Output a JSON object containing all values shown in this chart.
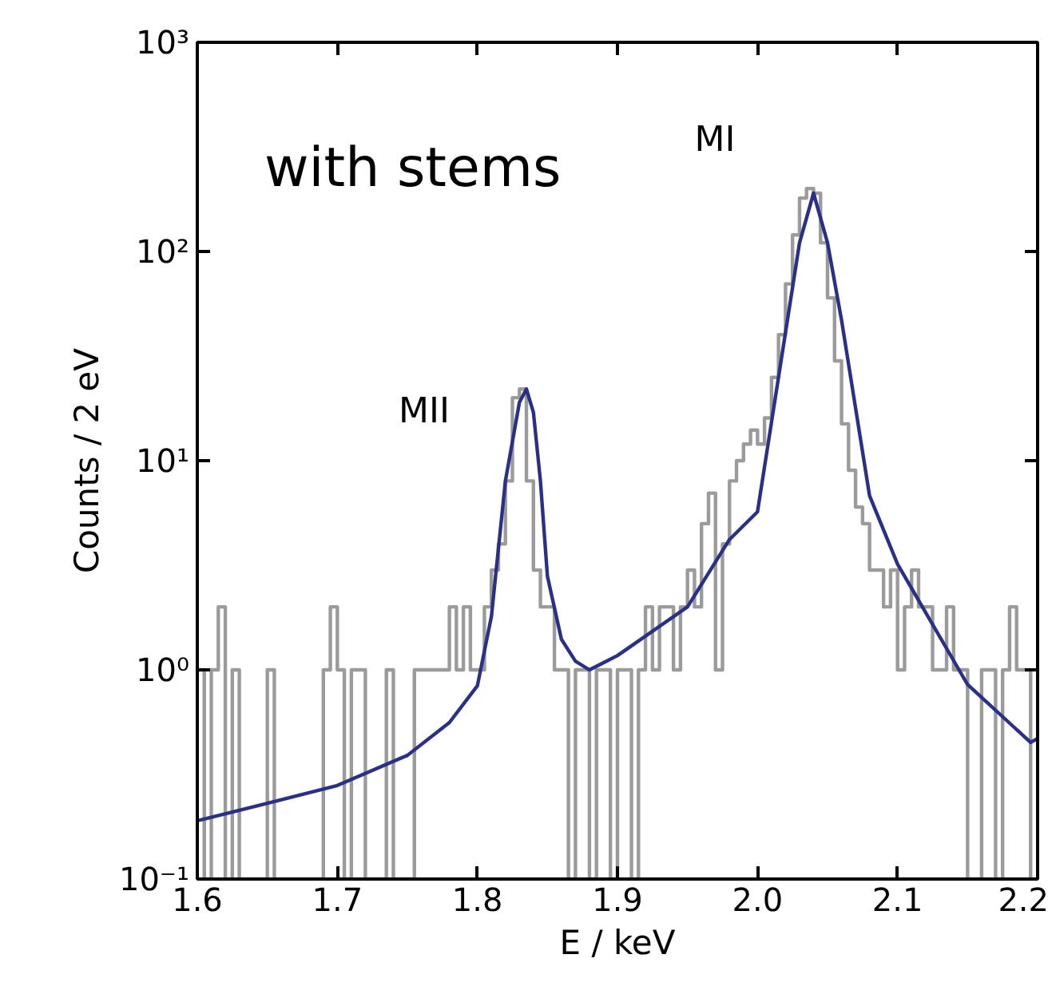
{
  "chart_data": {
    "type": "histogram",
    "xlabel": "E / keV",
    "ylabel": "Counts / 2 eV",
    "log": "y",
    "grid": false,
    "xlim": [
      1.6,
      2.2
    ],
    "xticks": [
      {
        "value": 1.6,
        "label": "1.6"
      },
      {
        "value": 1.7,
        "label": "1.7"
      },
      {
        "value": 1.8,
        "label": "1.8"
      },
      {
        "value": 1.9,
        "label": "1.9"
      },
      {
        "value": 2.0,
        "label": "2.0"
      },
      {
        "value": 2.1,
        "label": "2.1"
      },
      {
        "value": 2.2,
        "label": "2.2"
      }
    ],
    "ylim": [
      0.1,
      1000
    ],
    "yticks": [
      {
        "value": 0.1,
        "label": "10⁻¹"
      },
      {
        "value": 1,
        "label": "10⁰"
      },
      {
        "value": 10,
        "label": "10¹"
      },
      {
        "value": 100,
        "label": "10²"
      },
      {
        "value": 1000,
        "label": "10³"
      }
    ],
    "annotations": [
      "with stems",
      "MI",
      "MII"
    ],
    "series": [
      {
        "color": "#9b9b9b",
        "bins": [
          1.6,
          1.605,
          1.61,
          1.615,
          1.62,
          1.625,
          1.63,
          1.635,
          1.64,
          1.645,
          1.65,
          1.655,
          1.66,
          1.665,
          1.67,
          1.675,
          1.68,
          1.685,
          1.69,
          1.695,
          1.7,
          1.705,
          1.71,
          1.715,
          1.72,
          1.725,
          1.73,
          1.735,
          1.74,
          1.745,
          1.75,
          1.755,
          1.76,
          1.765,
          1.77,
          1.775,
          1.78,
          1.785,
          1.79,
          1.795,
          1.8,
          1.805,
          1.81,
          1.815,
          1.82,
          1.825,
          1.83,
          1.835,
          1.84,
          1.845,
          1.85,
          1.855,
          1.86,
          1.865,
          1.87,
          1.875,
          1.88,
          1.885,
          1.89,
          1.895,
          1.9,
          1.905,
          1.91,
          1.915,
          1.92,
          1.925,
          1.93,
          1.935,
          1.94,
          1.945,
          1.95,
          1.955,
          1.96,
          1.965,
          1.97,
          1.975,
          1.98,
          1.985,
          1.99,
          1.995,
          2.0,
          2.005,
          2.01,
          2.015,
          2.02,
          2.025,
          2.03,
          2.035,
          2.04,
          2.045,
          2.05,
          2.055,
          2.06,
          2.065,
          2.07,
          2.075,
          2.08,
          2.085,
          2.09,
          2.095,
          2.1,
          2.105,
          2.11,
          2.115,
          2.12,
          2.125,
          2.13,
          2.135,
          2.14,
          2.145,
          2.15,
          2.155,
          2.16,
          2.165,
          2.17,
          2.175,
          2.18,
          2.185,
          2.19,
          2.195,
          2.2
        ],
        "values": [
          1,
          null,
          1,
          2,
          null,
          1,
          null,
          null,
          null,
          null,
          1,
          null,
          null,
          null,
          null,
          null,
          null,
          null,
          1,
          2,
          1,
          null,
          1,
          1,
          null,
          null,
          null,
          1,
          null,
          null,
          null,
          1,
          1,
          1,
          1,
          1,
          2,
          1,
          2,
          1,
          1,
          2,
          3,
          4,
          8,
          20,
          22,
          8,
          3,
          2,
          2,
          1,
          1,
          null,
          1,
          1,
          null,
          1,
          1,
          null,
          1,
          1,
          null,
          1,
          2,
          1,
          2,
          2,
          1,
          2,
          3,
          2,
          5,
          7,
          1,
          4,
          8,
          10,
          12,
          14,
          12,
          16,
          25,
          40,
          70,
          120,
          180,
          200,
          190,
          110,
          60,
          30,
          15,
          9,
          6,
          5,
          3,
          3,
          2,
          3,
          1,
          2,
          3,
          2,
          2,
          1,
          1,
          2,
          1,
          1,
          null,
          null,
          1,
          1,
          null,
          1,
          2,
          1,
          1,
          null
        ]
      },
      {
        "type": "line",
        "color": "#2b2f86",
        "x": [
          1.6,
          1.65,
          1.7,
          1.75,
          1.78,
          1.8,
          1.81,
          1.82,
          1.83,
          1.835,
          1.84,
          1.845,
          1.85,
          1.86,
          1.87,
          1.88,
          1.9,
          1.95,
          1.98,
          2.0,
          2.02,
          2.03,
          2.04,
          2.05,
          2.06,
          2.08,
          2.1,
          2.15,
          2.195,
          2.2
        ],
        "values": [
          0.19,
          0.23,
          0.28,
          0.39,
          0.56,
          0.84,
          1.8,
          8,
          19,
          22,
          17,
          8,
          2.8,
          1.4,
          1.1,
          1.0,
          1.17,
          2.0,
          4.2,
          5.7,
          41,
          110,
          190,
          110,
          47,
          6.8,
          3.2,
          0.85,
          0.45,
          0.47
        ]
      }
    ]
  }
}
